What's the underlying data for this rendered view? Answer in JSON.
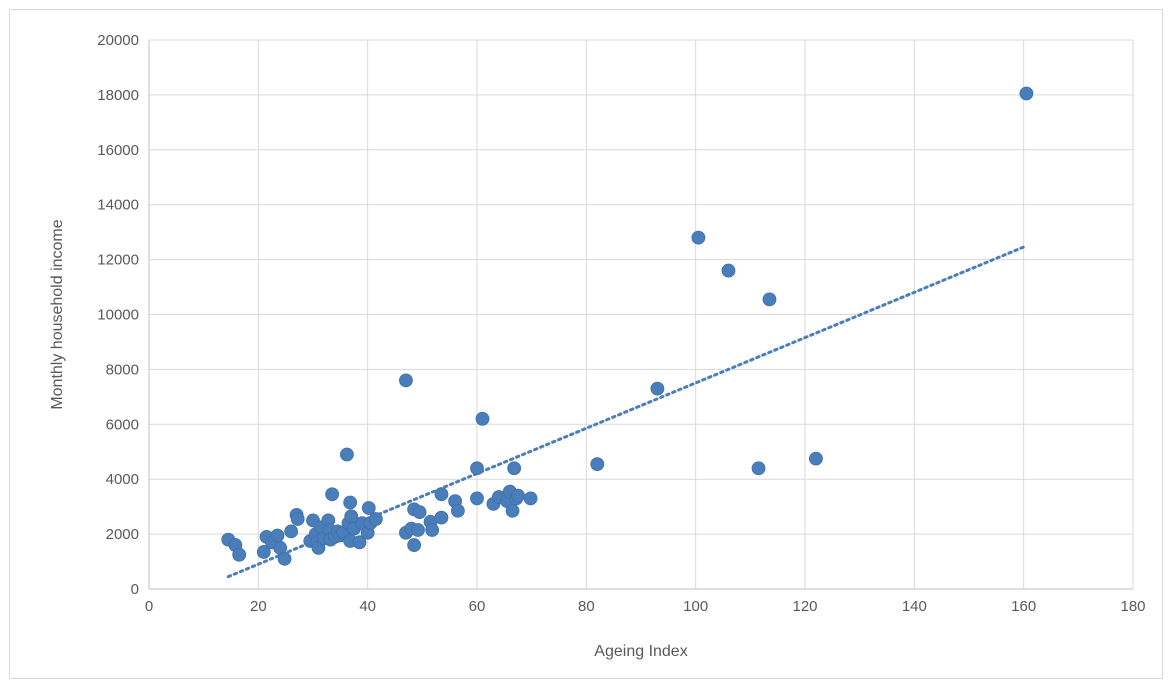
{
  "chart_data": {
    "type": "scatter",
    "title": "",
    "xlabel": "Ageing Index",
    "ylabel": "Monthly household income",
    "xlim": [
      0,
      180
    ],
    "ylim": [
      0,
      20000
    ],
    "x_ticks": [
      0,
      20,
      40,
      60,
      80,
      100,
      120,
      140,
      160,
      180
    ],
    "y_ticks": [
      0,
      2000,
      4000,
      6000,
      8000,
      10000,
      12000,
      14000,
      16000,
      18000,
      20000
    ],
    "grid": true,
    "legend": "none",
    "marker_color": "#4a7ebb",
    "trendline": {
      "type": "linear",
      "style": "dotted",
      "color": "#4a7ebb",
      "points": [
        [
          14.5,
          450
        ],
        [
          160.5,
          12500
        ]
      ]
    },
    "series": [
      {
        "points": [
          [
            14.5,
            1800
          ],
          [
            15.8,
            1600
          ],
          [
            16.5,
            1250
          ],
          [
            21,
            1350
          ],
          [
            21.5,
            1900
          ],
          [
            22.5,
            1700
          ],
          [
            23.5,
            1950
          ],
          [
            24,
            1500
          ],
          [
            24.8,
            1100
          ],
          [
            26,
            2100
          ],
          [
            27,
            2700
          ],
          [
            27.2,
            2550
          ],
          [
            29.5,
            1750
          ],
          [
            30,
            2500
          ],
          [
            30.5,
            2000
          ],
          [
            30.8,
            1700
          ],
          [
            31,
            1500
          ],
          [
            31.5,
            2250
          ],
          [
            32,
            1850
          ],
          [
            32.8,
            2500
          ],
          [
            33,
            2150
          ],
          [
            33.2,
            1800
          ],
          [
            33.5,
            3450
          ],
          [
            34,
            1900
          ],
          [
            34.5,
            2100
          ],
          [
            35,
            1950
          ],
          [
            35.5,
            2050
          ],
          [
            36.2,
            4900
          ],
          [
            36.5,
            2400
          ],
          [
            36.8,
            1750
          ],
          [
            37,
            2650
          ],
          [
            36.8,
            3150
          ],
          [
            37.5,
            2200
          ],
          [
            38.5,
            1700
          ],
          [
            39,
            2400
          ],
          [
            40,
            2050
          ],
          [
            40.2,
            2950
          ],
          [
            40.5,
            2400
          ],
          [
            41.5,
            2550
          ],
          [
            47,
            7600
          ],
          [
            47,
            2050
          ],
          [
            48,
            2200
          ],
          [
            48.5,
            2900
          ],
          [
            48.5,
            1600
          ],
          [
            49.2,
            2150
          ],
          [
            49.5,
            2800
          ],
          [
            51.5,
            2450
          ],
          [
            51.8,
            2150
          ],
          [
            53.5,
            3450
          ],
          [
            53.5,
            2600
          ],
          [
            56,
            3200
          ],
          [
            56.5,
            2850
          ],
          [
            60,
            4400
          ],
          [
            60,
            3300
          ],
          [
            61,
            6200
          ],
          [
            63,
            3100
          ],
          [
            64,
            3350
          ],
          [
            65.5,
            3200
          ],
          [
            66,
            3550
          ],
          [
            66.5,
            2850
          ],
          [
            66.8,
            4400
          ],
          [
            67.2,
            3300
          ],
          [
            67.5,
            3400
          ],
          [
            69.8,
            3300
          ],
          [
            82,
            4550
          ],
          [
            93,
            7300
          ],
          [
            100.5,
            12800
          ],
          [
            106,
            11600
          ],
          [
            111.5,
            4400
          ],
          [
            113.5,
            10550
          ],
          [
            122,
            4750
          ],
          [
            160.5,
            18050
          ]
        ]
      }
    ]
  }
}
